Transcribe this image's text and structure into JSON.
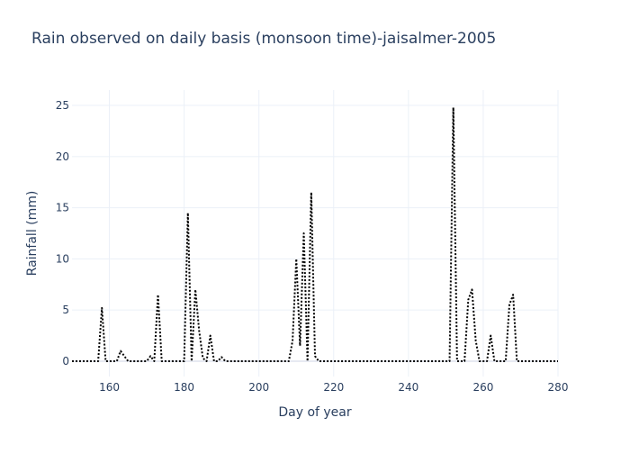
{
  "chart_data": {
    "type": "line",
    "title": "Rain observed on daily basis (monsoon time)-jaisalmer-2005",
    "xlabel": "Day of year",
    "ylabel": "Rainfall (mm)",
    "xlim": [
      150,
      280
    ],
    "ylim": [
      -1.5,
      26.5
    ],
    "x_ticks": [
      160,
      180,
      200,
      220,
      240,
      260,
      280
    ],
    "y_ticks": [
      0,
      5,
      10,
      15,
      20,
      25
    ],
    "grid": true,
    "legend": "none",
    "line_style": "dotted",
    "line_color": "#000000",
    "series": [
      {
        "x": [
          150,
          151,
          152,
          153,
          154,
          155,
          156,
          157,
          158,
          159,
          160,
          161,
          162,
          163,
          164,
          165,
          166,
          167,
          168,
          169,
          170,
          171,
          172,
          173,
          174,
          175,
          176,
          177,
          178,
          179,
          180,
          181,
          182,
          183,
          184,
          185,
          186,
          187,
          188,
          189,
          190,
          191,
          192,
          193,
          194,
          195,
          196,
          197,
          198,
          199,
          200,
          201,
          202,
          203,
          204,
          205,
          206,
          207,
          208,
          209,
          210,
          211,
          212,
          213,
          214,
          215,
          216,
          217,
          218,
          219,
          220,
          221,
          222,
          223,
          224,
          225,
          226,
          227,
          228,
          229,
          230,
          231,
          232,
          233,
          234,
          235,
          236,
          237,
          238,
          239,
          240,
          241,
          242,
          243,
          244,
          245,
          246,
          247,
          248,
          249,
          250,
          251,
          252,
          253,
          254,
          255,
          256,
          257,
          258,
          259,
          260,
          261,
          262,
          263,
          264,
          265,
          266,
          267,
          268,
          269,
          270,
          271,
          272,
          273,
          274,
          275,
          276,
          277,
          278,
          279,
          280
        ],
        "values": [
          0,
          0,
          0,
          0,
          0,
          0,
          0,
          0,
          5.2,
          0,
          0,
          0,
          0,
          1,
          0.5,
          0,
          0,
          0,
          0,
          0,
          0,
          0.5,
          0,
          6.5,
          0,
          0,
          0,
          0,
          0,
          0,
          0,
          14.5,
          0,
          7,
          3,
          0.3,
          0,
          2.5,
          0,
          0,
          0.4,
          0,
          0,
          0,
          0,
          0,
          0,
          0,
          0,
          0,
          0,
          0,
          0,
          0,
          0,
          0,
          0,
          0,
          0,
          2,
          10,
          1.5,
          12.5,
          0,
          16.5,
          0.5,
          0,
          0,
          0,
          0,
          0,
          0,
          0,
          0,
          0,
          0,
          0,
          0,
          0,
          0,
          0,
          0,
          0,
          0,
          0,
          0,
          0,
          0,
          0,
          0,
          0,
          0,
          0,
          0,
          0,
          0,
          0,
          0,
          0,
          0,
          0,
          0,
          24.8,
          0,
          0,
          0,
          6,
          7,
          2,
          0,
          0,
          0,
          2.5,
          0,
          0,
          0,
          0,
          5.5,
          6.5,
          0,
          0,
          0,
          0,
          0,
          0,
          0,
          0,
          0,
          0,
          0,
          0
        ]
      }
    ]
  }
}
